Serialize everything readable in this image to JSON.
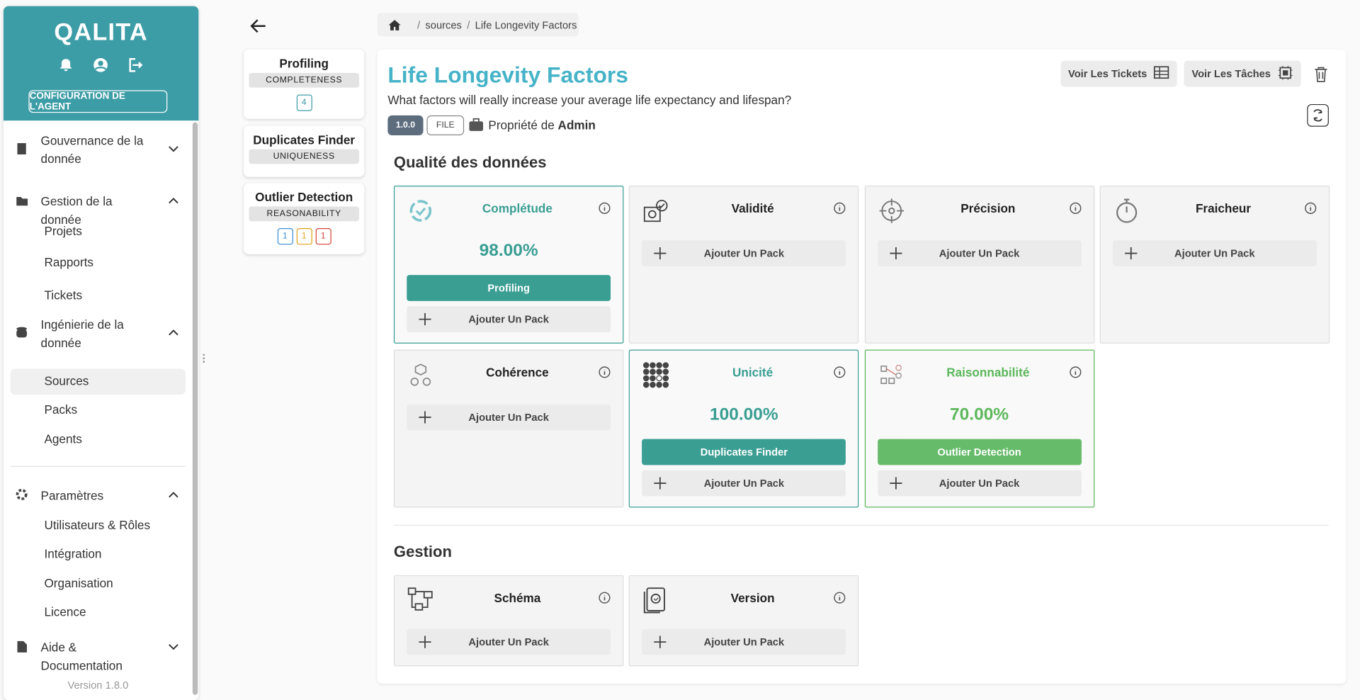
{
  "sidebar": {
    "logo": "QALITA",
    "agent_button": "CONFIGURATION DE L'AGENT",
    "menu": [
      {
        "label": "Gouvernance de la donnée",
        "open": false,
        "items": []
      },
      {
        "label": "Gestion de la donnée",
        "open": true,
        "items": [
          "Projets",
          "Rapports",
          "Tickets"
        ]
      },
      {
        "label": "Ingénierie de la donnée",
        "open": true,
        "items": [
          "Sources",
          "Packs",
          "Agents"
        ]
      },
      {
        "label": "Paramètres",
        "open": true,
        "items": [
          "Utilisateurs & Rôles",
          "Intégration",
          "Organisation",
          "Licence"
        ]
      },
      {
        "label": "Aide & Documentation",
        "open": false,
        "items": []
      }
    ],
    "version": "Version 1.8.0"
  },
  "packs": [
    {
      "name": "Profiling",
      "tag": "COMPLETENESS",
      "badges": [
        4
      ]
    },
    {
      "name": "Duplicates Finder",
      "tag": "UNIQUENESS",
      "badges": []
    },
    {
      "name": "Outlier Detection",
      "tag": "REASONABILITY",
      "badges": [
        1,
        1,
        1
      ]
    }
  ],
  "breadcrumb": [
    "sources",
    "Life Longevity Factors"
  ],
  "header": {
    "title": "Life Longevity Factors",
    "description": "What factors will really increase your average life expectancy and lifespan?",
    "version": "1.0.0",
    "type": "FILE",
    "owner_prefix": "Propriété de",
    "owner": "Admin",
    "buttons": [
      "Voir Les Tickets",
      "Voir Les Tâches"
    ]
  },
  "sections": [
    {
      "title": "Qualité des données",
      "cards": [
        {
          "name": "Complétude",
          "score": "98.00%",
          "pack": "Profiling",
          "add": "Ajouter Un Pack"
        },
        {
          "name": "Validité",
          "add": "Ajouter Un Pack"
        },
        {
          "name": "Précision",
          "add": "Ajouter Un Pack"
        },
        {
          "name": "Fraicheur",
          "add": "Ajouter Un Pack"
        },
        {
          "name": "Cohérence",
          "add": "Ajouter Un Pack"
        },
        {
          "name": "Unicité",
          "score": "100.00%",
          "pack": "Duplicates Finder",
          "add": "Ajouter Un Pack"
        },
        {
          "name": "Raisonnabilité",
          "score": "70.00%",
          "pack": "Outlier Detection",
          "add": "Ajouter Un Pack"
        }
      ]
    },
    {
      "title": "Gestion",
      "cards": [
        {
          "name": "Schéma",
          "add": "Ajouter Un Pack"
        },
        {
          "name": "Version",
          "add": "Ajouter Un Pack"
        }
      ]
    }
  ]
}
